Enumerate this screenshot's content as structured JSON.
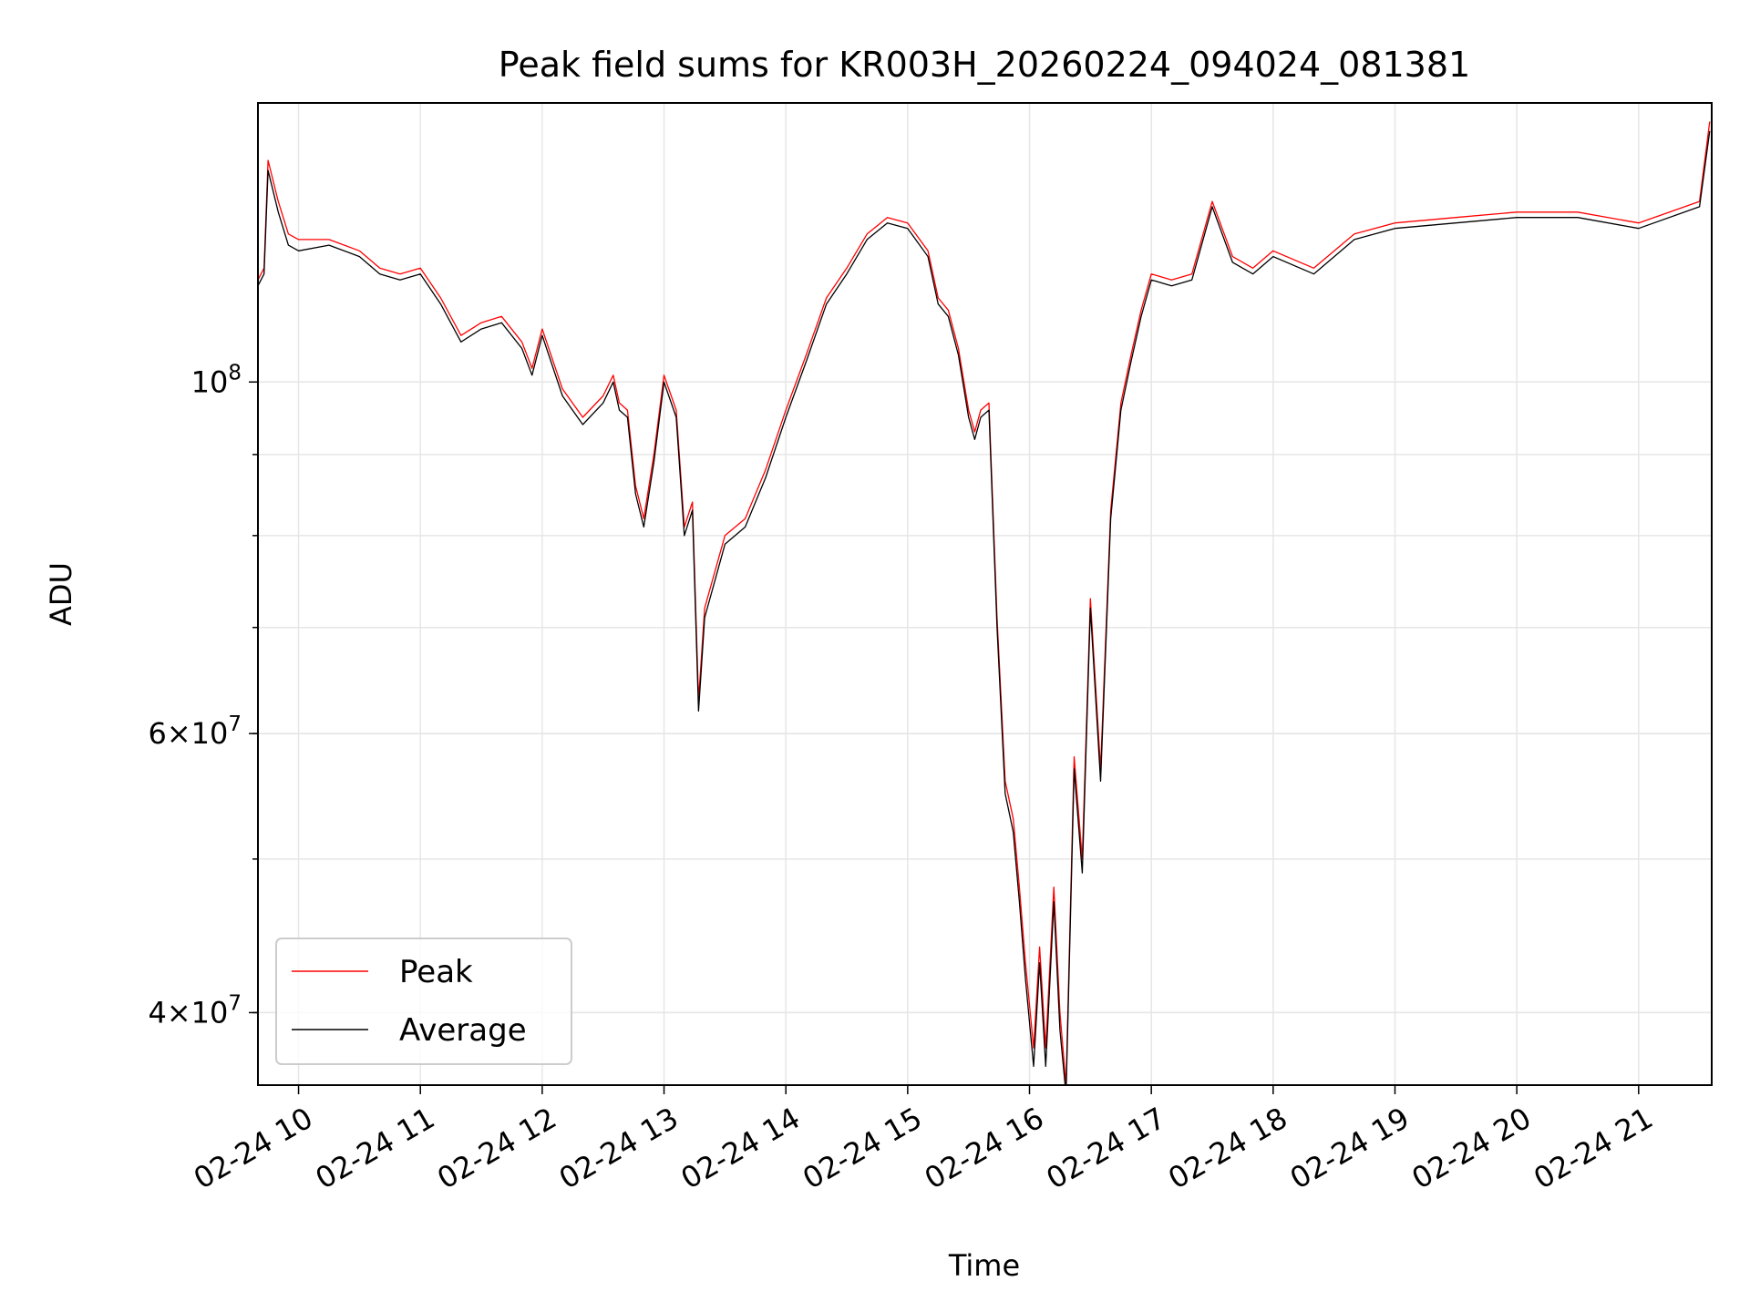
{
  "chart_data": {
    "type": "line",
    "title": "Peak field sums for KR003H_20260224_094024_081381",
    "xlabel": "Time",
    "ylabel": "ADU",
    "yscale": "log",
    "grid": true,
    "legend_position": "lower-left",
    "xlim": [
      "2026-02-24T09:40",
      "2026-02-24T21:36"
    ],
    "ylim": [
      36000000,
      150000000
    ],
    "x_ticks": [
      "02-24 10",
      "02-24 11",
      "02-24 12",
      "02-24 13",
      "02-24 14",
      "02-24 15",
      "02-24 16",
      "02-24 17",
      "02-24 18",
      "02-24 19",
      "02-24 20",
      "02-24 21"
    ],
    "y_major_ticks": [
      {
        "value": 100000000,
        "label_base": "10",
        "label_exp": "8",
        "label_coef": ""
      },
      {
        "value": 60000000,
        "label_base": "10",
        "label_exp": "7",
        "label_coef": "6×"
      },
      {
        "value": 40000000,
        "label_base": "10",
        "label_exp": "7",
        "label_coef": "4×"
      }
    ],
    "y_minor_ticks": [
      40000000,
      50000000,
      60000000,
      70000000,
      80000000,
      90000000
    ],
    "series": [
      {
        "name": "Peak",
        "color": "#ff0000",
        "line_width": 1,
        "x": [
          "2026-02-24T09:40",
          "2026-02-24T09:43",
          "2026-02-24T09:45",
          "2026-02-24T09:50",
          "2026-02-24T09:55",
          "2026-02-24T10:00",
          "2026-02-24T10:15",
          "2026-02-24T10:30",
          "2026-02-24T10:40",
          "2026-02-24T10:50",
          "2026-02-24T11:00",
          "2026-02-24T11:10",
          "2026-02-24T11:20",
          "2026-02-24T11:30",
          "2026-02-24T11:40",
          "2026-02-24T11:50",
          "2026-02-24T11:55",
          "2026-02-24T12:00",
          "2026-02-24T12:10",
          "2026-02-24T12:20",
          "2026-02-24T12:30",
          "2026-02-24T12:35",
          "2026-02-24T12:38",
          "2026-02-24T12:42",
          "2026-02-24T12:46",
          "2026-02-24T12:50",
          "2026-02-24T12:55",
          "2026-02-24T13:00",
          "2026-02-24T13:06",
          "2026-02-24T13:10",
          "2026-02-24T13:14",
          "2026-02-24T13:17",
          "2026-02-24T13:20",
          "2026-02-24T13:30",
          "2026-02-24T13:40",
          "2026-02-24T13:50",
          "2026-02-24T14:00",
          "2026-02-24T14:10",
          "2026-02-24T14:20",
          "2026-02-24T14:30",
          "2026-02-24T14:40",
          "2026-02-24T14:50",
          "2026-02-24T15:00",
          "2026-02-24T15:10",
          "2026-02-24T15:15",
          "2026-02-24T15:20",
          "2026-02-24T15:25",
          "2026-02-24T15:30",
          "2026-02-24T15:33",
          "2026-02-24T15:36",
          "2026-02-24T15:40",
          "2026-02-24T15:44",
          "2026-02-24T15:48",
          "2026-02-24T15:52",
          "2026-02-24T15:55",
          "2026-02-24T15:58",
          "2026-02-24T16:02",
          "2026-02-24T16:05",
          "2026-02-24T16:08",
          "2026-02-24T16:12",
          "2026-02-24T16:15",
          "2026-02-24T16:18",
          "2026-02-24T16:22",
          "2026-02-24T16:26",
          "2026-02-24T16:30",
          "2026-02-24T16:35",
          "2026-02-24T16:40",
          "2026-02-24T16:45",
          "2026-02-24T16:50",
          "2026-02-24T16:55",
          "2026-02-24T17:00",
          "2026-02-24T17:10",
          "2026-02-24T17:20",
          "2026-02-24T17:30",
          "2026-02-24T17:40",
          "2026-02-24T17:50",
          "2026-02-24T18:00",
          "2026-02-24T18:20",
          "2026-02-24T18:40",
          "2026-02-24T19:00",
          "2026-02-24T19:30",
          "2026-02-24T20:00",
          "2026-02-24T20:30",
          "2026-02-24T21:00",
          "2026-02-24T21:30",
          "2026-02-24T21:35"
        ],
        "y": [
          116000000,
          118000000,
          138000000,
          130000000,
          124000000,
          123000000,
          123000000,
          121000000,
          118000000,
          117000000,
          118000000,
          113000000,
          107000000,
          109000000,
          110000000,
          106000000,
          102000000,
          108000000,
          99000000,
          95000000,
          98000000,
          101000000,
          97000000,
          96000000,
          86000000,
          82000000,
          90000000,
          101000000,
          96000000,
          81000000,
          84000000,
          63000000,
          72000000,
          80000000,
          82000000,
          88000000,
          96000000,
          104000000,
          113000000,
          118000000,
          124000000,
          127000000,
          126000000,
          121000000,
          113000000,
          111000000,
          105000000,
          96000000,
          93000000,
          96000000,
          97000000,
          71000000,
          56000000,
          53000000,
          48000000,
          43000000,
          38000000,
          44000000,
          38000000,
          48000000,
          40000000,
          36000000,
          58000000,
          50000000,
          73000000,
          57000000,
          83000000,
          97000000,
          104000000,
          111000000,
          117000000,
          116000000,
          117000000,
          130000000,
          120000000,
          118000000,
          121000000,
          118000000,
          124000000,
          126000000,
          127000000,
          128000000,
          128000000,
          126000000,
          130000000,
          146000000
        ]
      },
      {
        "name": "Average",
        "color": "#000000",
        "line_width": 1,
        "x": [
          "2026-02-24T09:40",
          "2026-02-24T09:43",
          "2026-02-24T09:45",
          "2026-02-24T09:50",
          "2026-02-24T09:55",
          "2026-02-24T10:00",
          "2026-02-24T10:15",
          "2026-02-24T10:30",
          "2026-02-24T10:40",
          "2026-02-24T10:50",
          "2026-02-24T11:00",
          "2026-02-24T11:10",
          "2026-02-24T11:20",
          "2026-02-24T11:30",
          "2026-02-24T11:40",
          "2026-02-24T11:50",
          "2026-02-24T11:55",
          "2026-02-24T12:00",
          "2026-02-24T12:10",
          "2026-02-24T12:20",
          "2026-02-24T12:30",
          "2026-02-24T12:35",
          "2026-02-24T12:38",
          "2026-02-24T12:42",
          "2026-02-24T12:46",
          "2026-02-24T12:50",
          "2026-02-24T12:55",
          "2026-02-24T13:00",
          "2026-02-24T13:06",
          "2026-02-24T13:10",
          "2026-02-24T13:14",
          "2026-02-24T13:17",
          "2026-02-24T13:20",
          "2026-02-24T13:30",
          "2026-02-24T13:40",
          "2026-02-24T13:50",
          "2026-02-24T14:00",
          "2026-02-24T14:10",
          "2026-02-24T14:20",
          "2026-02-24T14:30",
          "2026-02-24T14:40",
          "2026-02-24T14:50",
          "2026-02-24T15:00",
          "2026-02-24T15:10",
          "2026-02-24T15:15",
          "2026-02-24T15:20",
          "2026-02-24T15:25",
          "2026-02-24T15:30",
          "2026-02-24T15:33",
          "2026-02-24T15:36",
          "2026-02-24T15:40",
          "2026-02-24T15:44",
          "2026-02-24T15:48",
          "2026-02-24T15:52",
          "2026-02-24T15:55",
          "2026-02-24T15:58",
          "2026-02-24T16:02",
          "2026-02-24T16:05",
          "2026-02-24T16:08",
          "2026-02-24T16:12",
          "2026-02-24T16:15",
          "2026-02-24T16:18",
          "2026-02-24T16:22",
          "2026-02-24T16:26",
          "2026-02-24T16:30",
          "2026-02-24T16:35",
          "2026-02-24T16:40",
          "2026-02-24T16:45",
          "2026-02-24T16:50",
          "2026-02-24T16:55",
          "2026-02-24T17:00",
          "2026-02-24T17:10",
          "2026-02-24T17:20",
          "2026-02-24T17:30",
          "2026-02-24T17:40",
          "2026-02-24T17:50",
          "2026-02-24T18:00",
          "2026-02-24T18:20",
          "2026-02-24T18:40",
          "2026-02-24T19:00",
          "2026-02-24T19:30",
          "2026-02-24T20:00",
          "2026-02-24T20:30",
          "2026-02-24T21:00",
          "2026-02-24T21:30",
          "2026-02-24T21:35"
        ],
        "y": [
          115000000,
          117000000,
          136000000,
          128000000,
          122000000,
          121000000,
          122000000,
          120000000,
          117000000,
          116000000,
          117000000,
          112000000,
          106000000,
          108000000,
          109000000,
          105000000,
          101000000,
          107000000,
          98000000,
          94000000,
          97000000,
          100000000,
          96000000,
          95000000,
          85000000,
          81000000,
          89000000,
          100000000,
          95000000,
          80000000,
          83000000,
          62000000,
          71000000,
          79000000,
          81000000,
          87000000,
          95000000,
          103000000,
          112000000,
          117000000,
          123000000,
          126000000,
          125000000,
          120000000,
          112000000,
          110000000,
          104000000,
          95000000,
          92000000,
          95000000,
          96000000,
          70000000,
          55000000,
          52000000,
          47000000,
          42000000,
          37000000,
          43000000,
          37000000,
          47000000,
          39000000,
          35500000,
          57000000,
          49000000,
          72000000,
          56000000,
          82000000,
          96000000,
          103000000,
          110000000,
          116000000,
          115000000,
          116000000,
          129000000,
          119000000,
          117000000,
          120000000,
          117000000,
          123000000,
          125000000,
          126000000,
          127000000,
          127000000,
          125000000,
          129000000,
          144000000
        ]
      }
    ]
  }
}
